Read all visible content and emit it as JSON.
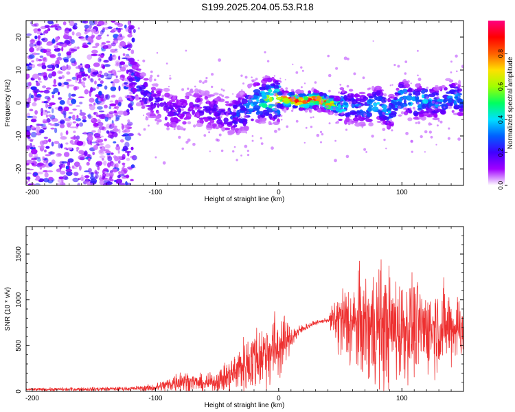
{
  "title": "S199.2025.204.05.53.R18",
  "chart_data": [
    {
      "type": "heatmap",
      "xlabel": "Height of straight line (km)",
      "ylabel": "Frequency (Hz)",
      "xlim": [
        -205,
        150
      ],
      "ylim": [
        -25,
        25
      ],
      "xticks": [
        -200,
        -100,
        0,
        100
      ],
      "yticks": [
        -20,
        -10,
        0,
        10,
        20
      ],
      "colorbar": {
        "label": "Normalized spectral amplitude",
        "range": [
          0,
          1
        ],
        "ticks": [
          "0.0",
          "0.2",
          "0.4",
          "0.6",
          "0.8"
        ],
        "colormap": [
          "#ffffff",
          "#a000ff",
          "#4000ff",
          "#0060ff",
          "#00e0ff",
          "#00ff60",
          "#a0ff00",
          "#ffe000",
          "#ff6000",
          "#ff0000",
          "#ff0080"
        ]
      },
      "ridge": {
        "x": [
          -120,
          -110,
          -100,
          -90,
          -80,
          -70,
          -60,
          -50,
          -40,
          -30,
          -20,
          -10,
          0,
          10,
          20,
          30,
          40,
          50,
          60,
          70,
          80,
          90,
          100,
          110,
          120,
          130,
          140,
          150
        ],
        "freq": [
          10,
          3,
          0,
          -2,
          -3,
          -1,
          -2,
          -3,
          -4,
          -3,
          0,
          1,
          1,
          1,
          0.5,
          1,
          0,
          -1,
          -1,
          -2,
          0,
          -3,
          2,
          0,
          1,
          0,
          2,
          1
        ],
        "amplitude": [
          0.25,
          0.25,
          0.2,
          0.2,
          0.18,
          0.15,
          0.18,
          0.2,
          0.22,
          0.3,
          0.4,
          0.55,
          0.75,
          0.85,
          0.9,
          0.9,
          0.8,
          0.5,
          0.3,
          0.35,
          0.4,
          0.35,
          0.4,
          0.45,
          0.4,
          0.35,
          0.35,
          0.4
        ]
      }
    },
    {
      "type": "line",
      "xlabel": "Height of straight line (km)",
      "ylabel": "SNR (10 * v/v)",
      "xlim": [
        -205,
        150
      ],
      "ylim": [
        0,
        1800
      ],
      "xticks": [
        -200,
        -100,
        0,
        100
      ],
      "yticks": [
        0,
        500,
        1000,
        1500
      ],
      "color": "#ee3030",
      "envelope": {
        "x": [
          -205,
          -150,
          -120,
          -100,
          -90,
          -80,
          -70,
          -60,
          -50,
          -40,
          -30,
          -20,
          -10,
          0,
          10,
          20,
          30,
          40,
          50,
          60,
          70,
          80,
          90,
          100,
          110,
          120,
          130,
          140,
          150
        ],
        "mean": [
          20,
          25,
          30,
          40,
          70,
          120,
          100,
          80,
          110,
          170,
          270,
          350,
          420,
          490,
          590,
          690,
          750,
          780,
          760,
          720,
          700,
          700,
          690,
          700,
          690,
          680,
          700,
          700,
          710
        ],
        "spread": [
          15,
          20,
          20,
          40,
          80,
          120,
          90,
          80,
          110,
          180,
          280,
          350,
          380,
          380,
          120,
          40,
          20,
          20,
          400,
          500,
          550,
          700,
          600,
          550,
          500,
          450,
          450,
          400,
          350
        ]
      }
    }
  ]
}
